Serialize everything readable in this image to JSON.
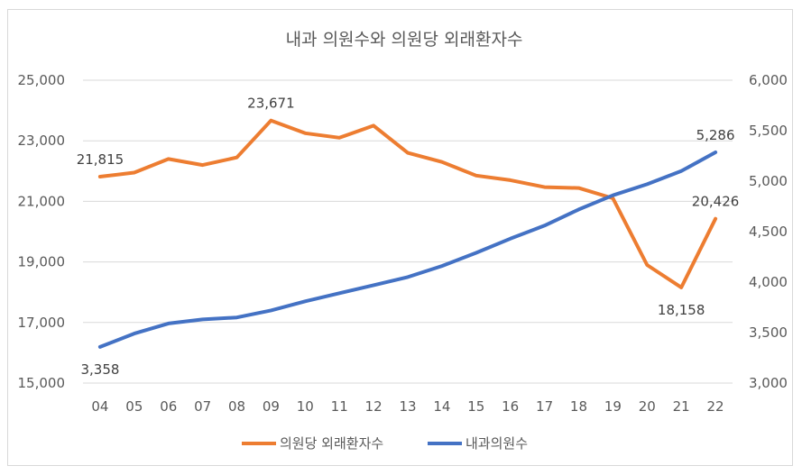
{
  "chart_data": {
    "type": "line",
    "title": "내과 의원수와 의원당 외래환자수",
    "categories": [
      "04",
      "05",
      "06",
      "07",
      "08",
      "09",
      "10",
      "11",
      "12",
      "13",
      "14",
      "15",
      "16",
      "17",
      "18",
      "19",
      "20",
      "21",
      "22"
    ],
    "series": [
      {
        "name": "의원당 외래환자수",
        "axis": "left",
        "color": "#ED7D31",
        "values": [
          21815,
          21950,
          22400,
          22200,
          22450,
          23671,
          23250,
          23100,
          23500,
          22600,
          22300,
          21850,
          21700,
          21470,
          21440,
          21100,
          18900,
          18158,
          20426
        ]
      },
      {
        "name": "내과의원수",
        "axis": "right",
        "color": "#4472C4",
        "values": [
          3358,
          3490,
          3590,
          3630,
          3650,
          3720,
          3810,
          3890,
          3970,
          4050,
          4160,
          4290,
          4430,
          4560,
          4720,
          4860,
          4970,
          5100,
          5286
        ]
      }
    ],
    "y_left": {
      "min": 15000,
      "max": 25000,
      "ticks": [
        "15,000",
        "17,000",
        "19,000",
        "21,000",
        "23,000",
        "25,000"
      ]
    },
    "y_right": {
      "min": 3000,
      "max": 6000,
      "ticks": [
        "3,000",
        "3,500",
        "4,000",
        "4,500",
        "5,000",
        "5,500",
        "6,000"
      ]
    },
    "data_labels": [
      {
        "series": 0,
        "index": 0,
        "text": "21,815",
        "pos": "above"
      },
      {
        "series": 0,
        "index": 5,
        "text": "23,671",
        "pos": "above"
      },
      {
        "series": 0,
        "index": 17,
        "text": "18,158",
        "pos": "below"
      },
      {
        "series": 0,
        "index": 18,
        "text": "20,426",
        "pos": "above"
      },
      {
        "series": 1,
        "index": 0,
        "text": "3,358",
        "pos": "below"
      },
      {
        "series": 1,
        "index": 18,
        "text": "5,286",
        "pos": "above"
      }
    ],
    "grid": true,
    "legend": "bottom"
  }
}
